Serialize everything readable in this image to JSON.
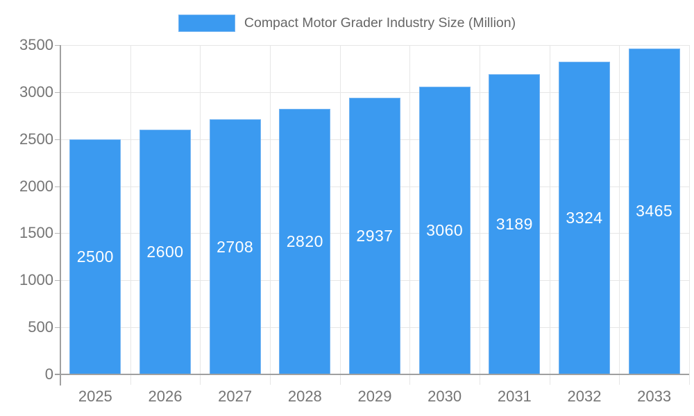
{
  "legend": {
    "label": "Compact Motor Grader Industry Size (Million)"
  },
  "chart_data": {
    "type": "bar",
    "title": "Compact Motor Grader Industry Size (Million)",
    "categories": [
      "2025",
      "2026",
      "2027",
      "2028",
      "2029",
      "2030",
      "2031",
      "2032",
      "2033"
    ],
    "values": [
      2500,
      2600,
      2708,
      2820,
      2937,
      3060,
      3189,
      3324,
      3465
    ],
    "xlabel": "",
    "ylabel": "",
    "ylim": [
      0,
      3500
    ],
    "yticks": [
      0,
      500,
      1000,
      1500,
      2000,
      2500,
      3000,
      3500
    ],
    "grid": true,
    "legend_position": "top",
    "bar_color": "#3b9af0",
    "bar_border_color": "#74b4f2",
    "value_label_color": "#ffffff",
    "axis_text_color": "#757575",
    "legend_text_color": "#666666",
    "gridline_color": "#e6e6e6",
    "axis_line_color": "#a0a0a0",
    "background_color": "#ffffff"
  }
}
